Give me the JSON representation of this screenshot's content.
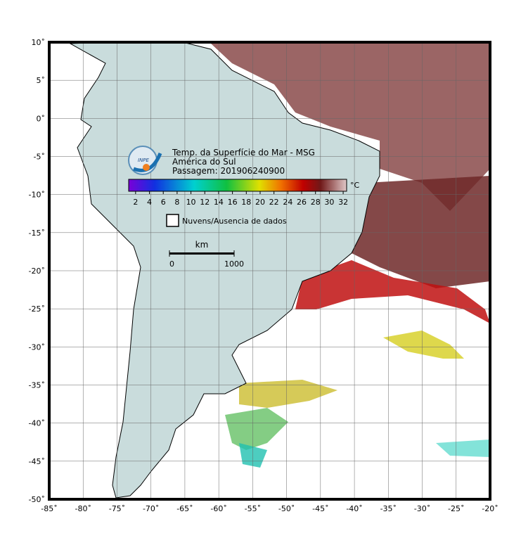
{
  "title": [
    "Temp. da Superfície do Mar - MSG",
    "América do Sul",
    "Passagem: 201906240900"
  ],
  "logo": "INPE",
  "map": {
    "xlim": [
      -85,
      -20
    ],
    "ylim": [
      -50,
      10
    ],
    "xticks": [
      {
        "value": -85,
        "label": "-85˚"
      },
      {
        "value": -80,
        "label": "-80˚"
      },
      {
        "value": -75,
        "label": "-75˚"
      },
      {
        "value": -70,
        "label": "-70˚"
      },
      {
        "value": -65,
        "label": "-65˚"
      },
      {
        "value": -60,
        "label": "-60˚"
      },
      {
        "value": -55,
        "label": "-55˚"
      },
      {
        "value": -50,
        "label": "-50˚"
      },
      {
        "value": -45,
        "label": "-45˚"
      },
      {
        "value": -40,
        "label": "-40˚"
      },
      {
        "value": -35,
        "label": "-35˚"
      },
      {
        "value": -30,
        "label": "-30˚"
      },
      {
        "value": -25,
        "label": "-25˚"
      },
      {
        "value": -20,
        "label": "-20˚"
      }
    ],
    "yticks": [
      {
        "value": 10,
        "label": "10˚"
      },
      {
        "value": 5,
        "label": "5˚"
      },
      {
        "value": 0,
        "label": "0˚"
      },
      {
        "value": -5,
        "label": "-5˚"
      },
      {
        "value": -10,
        "label": "-10˚"
      },
      {
        "value": -15,
        "label": "-15˚"
      },
      {
        "value": -20,
        "label": "-20˚"
      },
      {
        "value": -25,
        "label": "-25˚"
      },
      {
        "value": -30,
        "label": "-30˚"
      },
      {
        "value": -35,
        "label": "-35˚"
      },
      {
        "value": -40,
        "label": "-40˚"
      },
      {
        "value": -45,
        "label": "-45˚"
      },
      {
        "value": -50,
        "label": "-50˚"
      }
    ]
  },
  "colorbar": {
    "lim": [
      1,
      32.5
    ],
    "ticks": [
      2,
      4,
      6,
      8,
      10,
      12,
      14,
      16,
      18,
      20,
      22,
      24,
      26,
      28,
      30,
      32
    ],
    "unit": "°C"
  },
  "legend": "Nuvens/Ausencia de dados",
  "scale": {
    "label": "km",
    "ticks": [
      0,
      1000
    ]
  }
}
